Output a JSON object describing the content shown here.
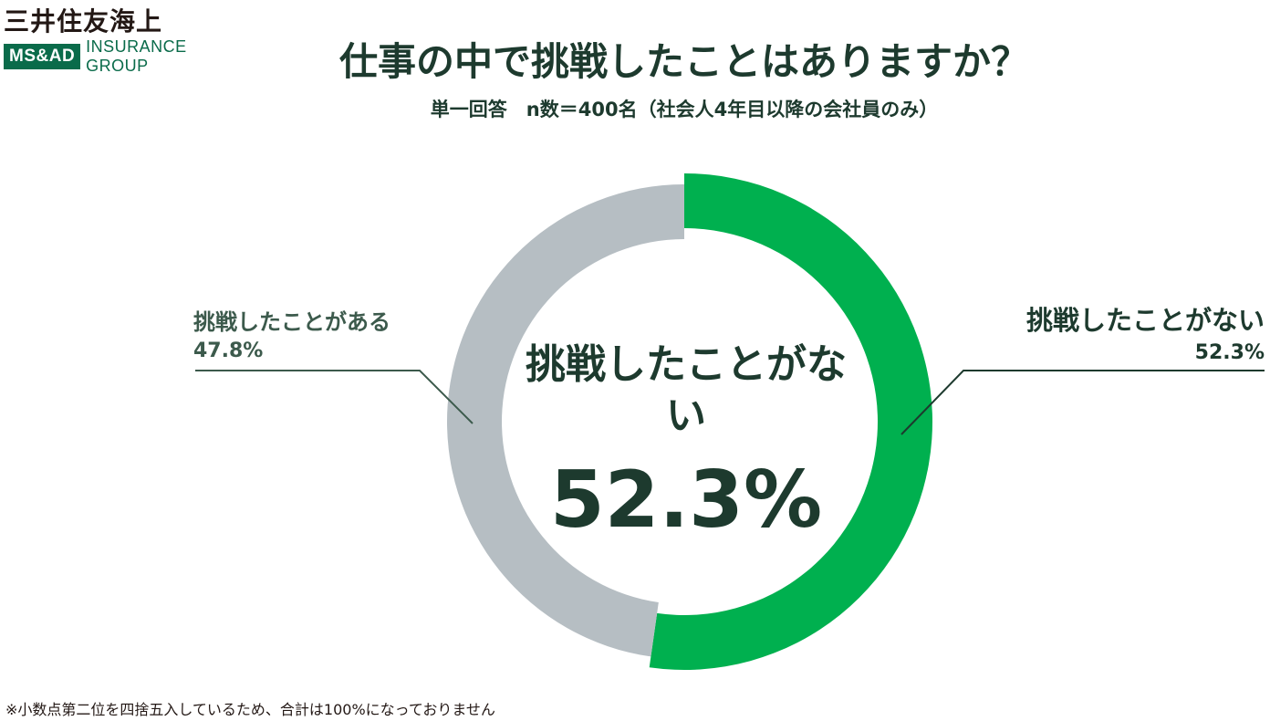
{
  "brand": {
    "name": "三井住友海上",
    "group_box": "MS&AD",
    "group_text": "INSURANCE GROUP",
    "color": "#0a6b4a"
  },
  "chart_data": {
    "type": "pie",
    "title": "仕事の中で挑戦したことはありますか？",
    "subtitle": "単一回答　n数＝400名（社会人4年目以降の会社員のみ）",
    "categories": [
      "挑戦したことがない",
      "挑戦したことがある"
    ],
    "values": [
      52.3,
      47.8
    ],
    "value_labels": [
      "52.3%",
      "47.8%"
    ],
    "colors": [
      "#00b04f",
      "#b6bec3"
    ],
    "donut": true,
    "center_label": "挑戦したことがない",
    "center_value": "52.3%",
    "footnote": "※小数点第二位を四捨五入しているため、合計は100%になっておりません"
  }
}
